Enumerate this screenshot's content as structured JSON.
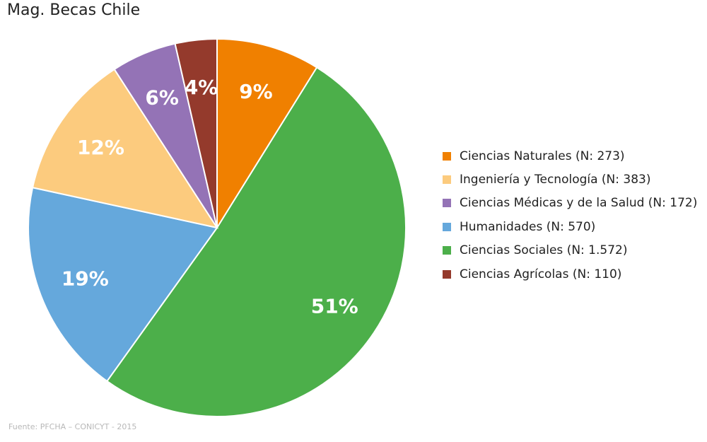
{
  "title": "Mag. Becas Chile",
  "source": "Fuente: PFCHA – CONICYT - 2015",
  "chart_data": {
    "type": "pie",
    "title": "Mag. Becas Chile",
    "slices": [
      {
        "label": "Ciencias Naturales (N: 273)",
        "value": 273,
        "percent_label": "9%",
        "color": "#f08000"
      },
      {
        "label": "Ciencias Sociales (N: 1.572)",
        "value": 1572,
        "percent_label": "51%",
        "color": "#4caf4a"
      },
      {
        "label": "Humanidades (N: 570)",
        "value": 570,
        "percent_label": "19%",
        "color": "#65a8dc"
      },
      {
        "label": "Ingeniería y Tecnología (N: 383)",
        "value": 383,
        "percent_label": "12%",
        "color": "#fccb7e"
      },
      {
        "label": "Ciencias Médicas y de la Salud (N: 172)",
        "value": 172,
        "percent_label": "6%",
        "color": "#9473b6"
      },
      {
        "label": "Ciencias Agrícolas (N: 110)",
        "value": 110,
        "percent_label": "4%",
        "color": "#943a2c"
      }
    ],
    "legend": [
      {
        "label": "Ciencias Naturales (N: 273)",
        "color": "#f08000"
      },
      {
        "label": "Ingeniería y Tecnología (N: 383)",
        "color": "#fccb7e"
      },
      {
        "label": "Ciencias Médicas y de la Salud (N: 172)",
        "color": "#9473b6"
      },
      {
        "label": "Humanidades (N: 570)",
        "color": "#65a8dc"
      },
      {
        "label": "Ciencias Sociales (N: 1.572)",
        "color": "#4caf4a"
      },
      {
        "label": "Ciencias Agrícolas (N: 110)",
        "color": "#943a2c"
      }
    ],
    "legend_position": "right"
  }
}
